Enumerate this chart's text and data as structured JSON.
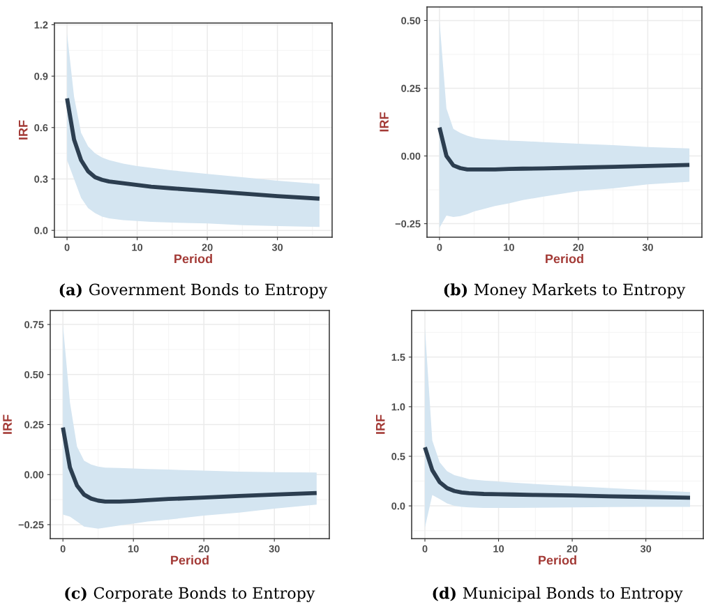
{
  "chart_data": [
    {
      "type": "line",
      "title": "(a) Government Bonds to Entropy",
      "xlabel": "Period",
      "ylabel": "IRF",
      "grid": true,
      "x": [
        0,
        1,
        2,
        3,
        4,
        5,
        6,
        8,
        10,
        12,
        15,
        20,
        25,
        30,
        36
      ],
      "xlim": [
        -1.8,
        37.8
      ],
      "xticks": [
        0,
        10,
        20,
        30
      ],
      "ylim": [
        -0.04,
        1.21
      ],
      "yticks": [
        {
          "value": 0,
          "label": "0.0"
        },
        0.3,
        0.6,
        0.9,
        1.2
      ],
      "series": [
        {
          "color": "#2c3e50",
          "values": [
            0.77,
            0.53,
            0.41,
            0.345,
            0.31,
            0.295,
            0.285,
            0.275,
            0.265,
            0.255,
            0.245,
            0.23,
            0.215,
            0.2,
            0.185
          ],
          "upper": [
            1.15,
            0.78,
            0.57,
            0.49,
            0.45,
            0.425,
            0.41,
            0.39,
            0.375,
            0.365,
            0.35,
            0.33,
            0.31,
            0.29,
            0.27
          ],
          "lower": [
            0.41,
            0.3,
            0.19,
            0.13,
            0.1,
            0.08,
            0.07,
            0.06,
            0.055,
            0.05,
            0.045,
            0.04,
            0.03,
            0.025,
            0.02
          ]
        }
      ]
    },
    {
      "type": "line",
      "title": "(b) Money Markets to Entropy",
      "xlabel": "Period",
      "ylabel": "IRF",
      "grid": true,
      "x": [
        0,
        1,
        2,
        3,
        4,
        5,
        6,
        8,
        10,
        12,
        15,
        20,
        25,
        30,
        36
      ],
      "xlim": [
        -1.8,
        37.8
      ],
      "xticks": [
        0,
        10,
        20,
        30
      ],
      "ylim": [
        -0.3,
        0.55
      ],
      "yticks": [
        {
          "value": -0.25,
          "label": "−0.25"
        },
        {
          "value": 0,
          "label": "0.00"
        },
        0.25,
        {
          "value": 0.5,
          "label": "0.50"
        }
      ],
      "series": [
        {
          "color": "#2c3e50",
          "values": [
            0.105,
            0.0,
            -0.035,
            -0.045,
            -0.05,
            -0.05,
            -0.05,
            -0.05,
            -0.048,
            -0.047,
            -0.046,
            -0.043,
            -0.04,
            -0.037,
            -0.033
          ],
          "upper": [
            0.5,
            0.175,
            0.1,
            0.085,
            0.075,
            0.068,
            0.063,
            0.06,
            0.057,
            0.055,
            0.051,
            0.045,
            0.04,
            0.033,
            0.028
          ],
          "lower": [
            -0.265,
            -0.22,
            -0.225,
            -0.222,
            -0.215,
            -0.205,
            -0.198,
            -0.185,
            -0.175,
            -0.163,
            -0.15,
            -0.13,
            -0.12,
            -0.105,
            -0.095
          ]
        }
      ]
    },
    {
      "type": "line",
      "title": "(c) Corporate Bonds to Entropy",
      "xlabel": "Period",
      "ylabel": "IRF",
      "grid": true,
      "x": [
        0,
        1,
        2,
        3,
        4,
        5,
        6,
        8,
        10,
        12,
        15,
        20,
        25,
        30,
        36
      ],
      "xlim": [
        -1.8,
        37.8
      ],
      "xticks": [
        0,
        10,
        20,
        30
      ],
      "ylim": [
        -0.32,
        0.82
      ],
      "yticks": [
        {
          "value": -0.25,
          "label": "−0.25"
        },
        {
          "value": 0,
          "label": "0.00"
        },
        0.25,
        {
          "value": 0.5,
          "label": "0.50"
        },
        0.75
      ],
      "series": [
        {
          "color": "#2c3e50",
          "values": [
            0.235,
            0.035,
            -0.055,
            -0.1,
            -0.12,
            -0.13,
            -0.135,
            -0.135,
            -0.132,
            -0.128,
            -0.122,
            -0.115,
            -0.107,
            -0.1,
            -0.092
          ],
          "upper": [
            0.75,
            0.36,
            0.14,
            0.07,
            0.05,
            0.04,
            0.035,
            0.033,
            0.03,
            0.028,
            0.025,
            0.02,
            0.015,
            0.012,
            0.01
          ],
          "lower": [
            -0.2,
            -0.21,
            -0.235,
            -0.26,
            -0.265,
            -0.27,
            -0.265,
            -0.255,
            -0.245,
            -0.235,
            -0.225,
            -0.205,
            -0.19,
            -0.17,
            -0.15
          ]
        }
      ]
    },
    {
      "type": "line",
      "title": "(d) Municipal Bonds to Entropy",
      "xlabel": "Period",
      "ylabel": "IRF",
      "grid": true,
      "x": [
        0,
        1,
        2,
        3,
        4,
        5,
        6,
        8,
        10,
        12,
        15,
        20,
        25,
        30,
        36
      ],
      "xlim": [
        -1.8,
        37.8
      ],
      "xticks": [
        0,
        10,
        20,
        30
      ],
      "ylim": [
        -0.33,
        1.97
      ],
      "yticks": [
        {
          "value": 0,
          "label": "0.0"
        },
        0.5,
        {
          "value": 1,
          "label": "1.0"
        },
        1.5
      ],
      "series": [
        {
          "color": "#2c3e50",
          "values": [
            0.59,
            0.36,
            0.24,
            0.18,
            0.15,
            0.135,
            0.128,
            0.12,
            0.118,
            0.115,
            0.11,
            0.105,
            0.097,
            0.09,
            0.082
          ],
          "upper": [
            1.8,
            0.66,
            0.44,
            0.35,
            0.31,
            0.29,
            0.27,
            0.255,
            0.245,
            0.235,
            0.22,
            0.2,
            0.18,
            0.16,
            0.14
          ],
          "lower": [
            -0.22,
            0.11,
            0.07,
            0.025,
            0.0,
            -0.01,
            -0.015,
            -0.02,
            -0.02,
            -0.02,
            -0.018,
            -0.015,
            -0.012,
            -0.01,
            -0.01
          ]
        }
      ]
    }
  ]
}
